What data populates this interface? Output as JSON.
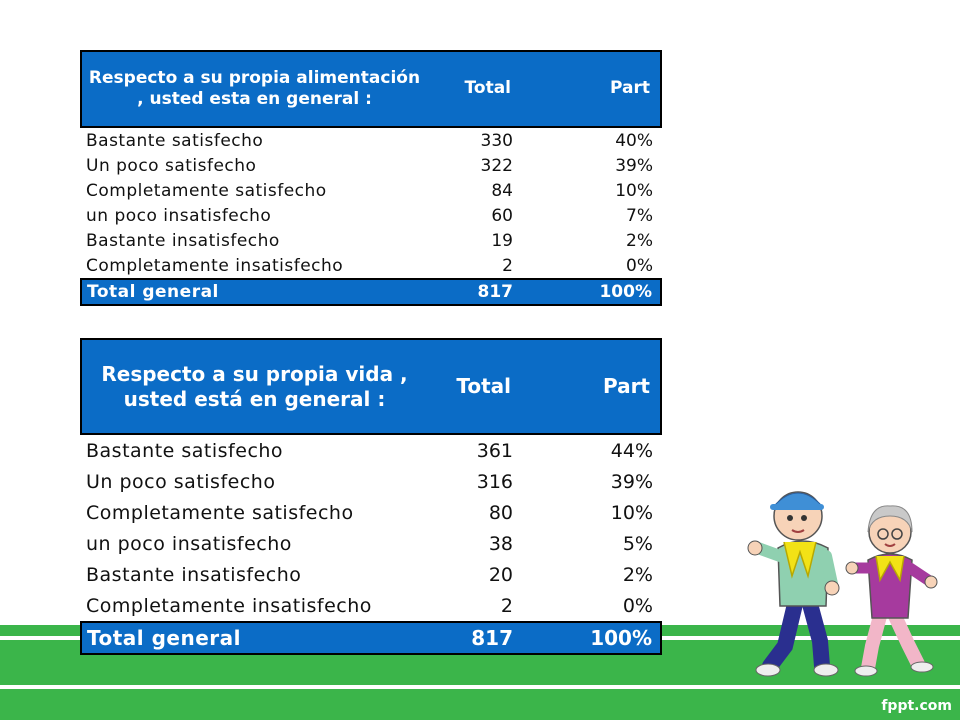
{
  "table1": {
    "header": [
      "Respecto a su propia alimentación , usted esta en general :",
      "Total",
      "Part"
    ],
    "rows": [
      [
        "Bastante satisfecho",
        "330",
        "40%"
      ],
      [
        "Un poco satisfecho",
        "322",
        "39%"
      ],
      [
        "Completamente satisfecho",
        "84",
        "10%"
      ],
      [
        "un poco insatisfecho",
        "60",
        "7%"
      ],
      [
        "Bastante insatisfecho",
        "19",
        "2%"
      ],
      [
        "Completamente insatisfecho",
        "2",
        "0%"
      ]
    ],
    "total": [
      "Total general",
      "817",
      "100%"
    ]
  },
  "table2": {
    "header": [
      "Respecto a su propia vida , usted está en general :",
      "Total",
      "Part"
    ],
    "rows": [
      [
        "Bastante satisfecho",
        "361",
        "44%"
      ],
      [
        "Un poco satisfecho",
        "316",
        "39%"
      ],
      [
        "Completamente satisfecho",
        "80",
        "10%"
      ],
      [
        "un poco insatisfecho",
        "38",
        "5%"
      ],
      [
        "Bastante insatisfecho",
        "20",
        "2%"
      ],
      [
        "Completamente insatisfecho",
        "2",
        "0%"
      ]
    ],
    "total": [
      "Total general",
      "817",
      "100%"
    ]
  },
  "footer": {
    "logo": "fppt.com"
  },
  "colors": {
    "header_blue": "#0b6cc6",
    "track_green": "#3bb54a"
  },
  "decor": {
    "illustration": "elderly-couple-jogging"
  }
}
